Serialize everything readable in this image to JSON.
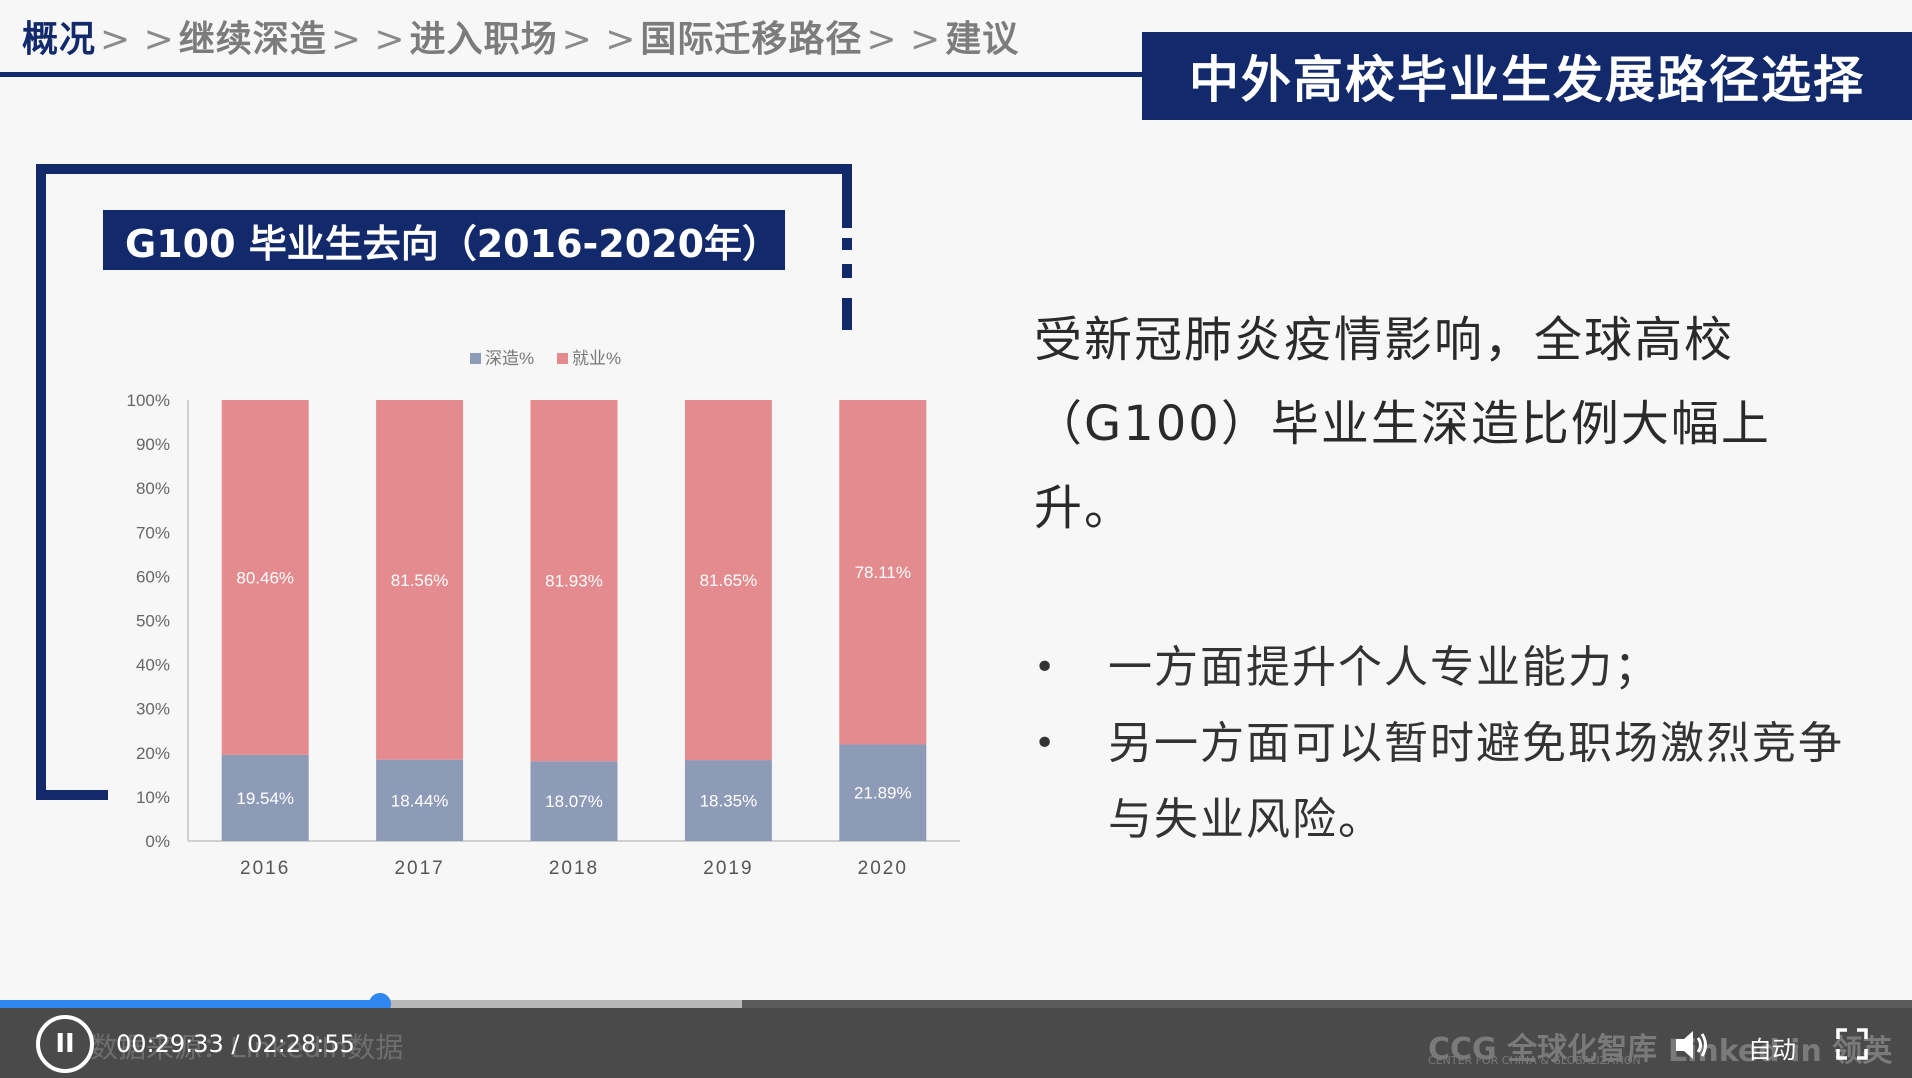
{
  "breadcrumb": {
    "items": [
      "概况",
      "继续深造",
      "进入职场",
      "国际迁移路径",
      "建议"
    ],
    "separator": "> >"
  },
  "header": {
    "title": "中外高校毕业生发展路径选择"
  },
  "chart_panel": {
    "title": "G100 毕业生去向（2016-2020年）"
  },
  "chart_data": {
    "type": "bar",
    "stacked": true,
    "categories": [
      "2016",
      "2017",
      "2018",
      "2019",
      "2020"
    ],
    "series": [
      {
        "name": "深造%",
        "values": [
          19.54,
          18.44,
          18.07,
          18.35,
          21.89
        ],
        "labels": [
          "19.54%",
          "18.44%",
          "18.07%",
          "18.35%",
          "21.89%"
        ],
        "color": "#8e9bb7"
      },
      {
        "name": "就业%",
        "values": [
          80.46,
          81.56,
          81.93,
          81.65,
          78.11
        ],
        "labels": [
          "80.46%",
          "81.56%",
          "81.93%",
          "81.65%",
          "78.11%"
        ],
        "color": "#e38b8e"
      }
    ],
    "yticks": [
      "0%",
      "10%",
      "20%",
      "30%",
      "40%",
      "50%",
      "60%",
      "70%",
      "80%",
      "90%",
      "100%"
    ],
    "ylim": [
      0,
      100
    ],
    "legend_position": "top",
    "grid": false
  },
  "main": {
    "statement": "受新冠肺炎疫情影响，全球高校（G100）毕业生深造比例大幅上升。",
    "bullets": [
      {
        "marker": "•",
        "text": "一方面提升个人专业能力；"
      },
      {
        "marker": "•",
        "text": "另一方面可以暂时避免职场激烈竞争与失业风险。"
      }
    ]
  },
  "player": {
    "time": "00:29:33 / 02:28:55",
    "progress_fraction": 0.199,
    "buffer_fraction": 0.388,
    "auto_label": "自动",
    "pause_symbol": "II",
    "source_text": "数据来源：LinkedIn数据",
    "ccg_logo": "CCG 全球化智库",
    "ccg_sub": "CENTER FOR CHINA & GLOBALIZATION",
    "linkedin_logo": "Linked in 领英"
  },
  "colors": {
    "navy": "#12296b",
    "progress": "#2f86ee"
  },
  "icons": {
    "pause": "pause-icon",
    "volume": "volume-icon",
    "fullscreen": "fullscreen-icon"
  }
}
